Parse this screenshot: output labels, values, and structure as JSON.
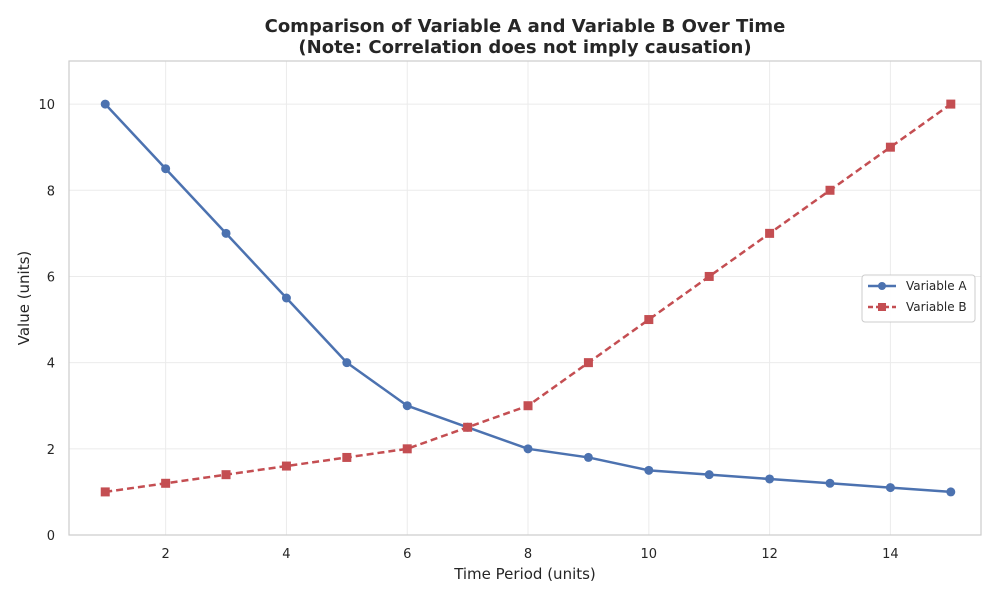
{
  "chart_data": {
    "type": "line",
    "title": "Comparison of Variable A and Variable B Over Time",
    "subtitle": "(Note: Correlation does not imply causation)",
    "xlabel": "Time Period (units)",
    "ylabel": "Value (units)",
    "xlim": [
      0.4,
      15.5
    ],
    "ylim": [
      0,
      11
    ],
    "xticks": [
      2,
      4,
      6,
      8,
      10,
      12,
      14
    ],
    "yticks": [
      0,
      2,
      4,
      6,
      8,
      10
    ],
    "grid": true,
    "legend_position": "center-right",
    "x": [
      1,
      2,
      3,
      4,
      5,
      6,
      7,
      8,
      9,
      10,
      11,
      12,
      13,
      14,
      15
    ],
    "series": [
      {
        "name": "Variable A",
        "color": "#4c72b0",
        "line_style": "solid",
        "marker": "circle",
        "values": [
          10,
          8.5,
          7,
          5.5,
          4,
          3,
          2.5,
          2,
          1.8,
          1.5,
          1.4,
          1.3,
          1.2,
          1.1,
          1.0
        ]
      },
      {
        "name": "Variable B",
        "color": "#c44e52",
        "line_style": "dashed",
        "marker": "square",
        "values": [
          1.0,
          1.2,
          1.4,
          1.6,
          1.8,
          2,
          2.5,
          3,
          4,
          5,
          6,
          7,
          8,
          9,
          10
        ]
      }
    ]
  }
}
